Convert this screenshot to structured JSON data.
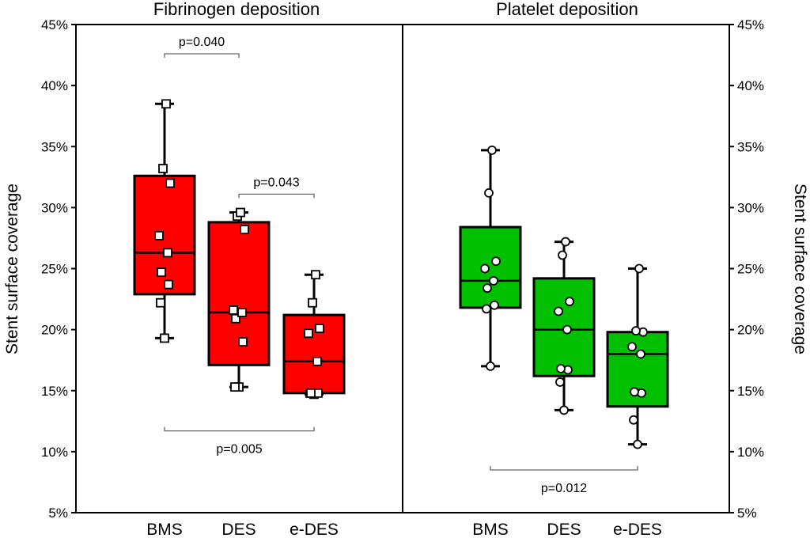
{
  "chart_data": [
    {
      "type": "box",
      "title": "Fibrinogen deposition",
      "ylabel": "Stent surface coverage",
      "ylim": [
        5,
        45
      ],
      "ytick_labels": [
        "5%",
        "10%",
        "15%",
        "20%",
        "25%",
        "30%",
        "35%",
        "40%",
        "45%"
      ],
      "categories": [
        "BMS",
        "DES",
        "e-DES"
      ],
      "color": "#ff0000",
      "marker": "square",
      "boxes": [
        {
          "name": "BMS",
          "min": 19.3,
          "q1": 22.9,
          "median": 26.3,
          "q3": 32.6,
          "max": 38.5,
          "points": [
            19.3,
            22.2,
            23.7,
            24.7,
            26.3,
            27.7,
            32.0,
            33.2,
            38.5
          ]
        },
        {
          "name": "DES",
          "min": 15.3,
          "q1": 17.1,
          "median": 21.4,
          "q3": 28.8,
          "max": 29.6,
          "points": [
            15.3,
            15.3,
            19.0,
            20.9,
            21.4,
            21.6,
            28.2,
            29.3,
            29.6
          ]
        },
        {
          "name": "e-DES",
          "min": 14.7,
          "q1": 14.8,
          "median": 17.4,
          "q3": 21.2,
          "max": 24.5,
          "points": [
            14.7,
            14.8,
            14.8,
            14.8,
            17.4,
            19.7,
            20.1,
            22.2,
            24.5
          ]
        }
      ],
      "annotations": [
        {
          "text": "p=0.040",
          "from": "BMS",
          "to": "DES",
          "y": 42.6
        },
        {
          "text": "p=0.043",
          "from": "DES",
          "to": "e-DES",
          "y": 31.1
        },
        {
          "text": "p=0.005",
          "from": "BMS",
          "to": "e-DES",
          "y": 11.7
        }
      ]
    },
    {
      "type": "box",
      "title": "Platelet deposition",
      "ylabel": "Stent surface coverage",
      "ylim": [
        5,
        45
      ],
      "ytick_labels": [
        "5%",
        "10%",
        "15%",
        "20%",
        "25%",
        "30%",
        "35%",
        "40%",
        "45%"
      ],
      "categories": [
        "BMS",
        "DES",
        "e-DES"
      ],
      "color": "#00c000",
      "marker": "circle",
      "boxes": [
        {
          "name": "BMS",
          "min": 17.0,
          "q1": 21.8,
          "median": 24.0,
          "q3": 28.4,
          "max": 34.7,
          "points": [
            17.0,
            21.7,
            22.0,
            23.4,
            24.0,
            25.0,
            25.6,
            31.2,
            34.7
          ]
        },
        {
          "name": "DES",
          "min": 13.4,
          "q1": 16.2,
          "median": 20.0,
          "q3": 24.2,
          "max": 27.2,
          "points": [
            13.4,
            15.7,
            16.7,
            16.8,
            20.0,
            21.5,
            22.3,
            26.1,
            27.2
          ]
        },
        {
          "name": "e-DES",
          "min": 10.6,
          "q1": 13.7,
          "median": 18.0,
          "q3": 19.8,
          "max": 25.0,
          "points": [
            10.6,
            12.6,
            14.8,
            14.9,
            18.0,
            18.6,
            19.8,
            19.9,
            25.0
          ]
        }
      ],
      "annotations": [
        {
          "text": "p=0.012",
          "from": "BMS",
          "to": "e-DES",
          "y": 8.5
        }
      ]
    }
  ]
}
